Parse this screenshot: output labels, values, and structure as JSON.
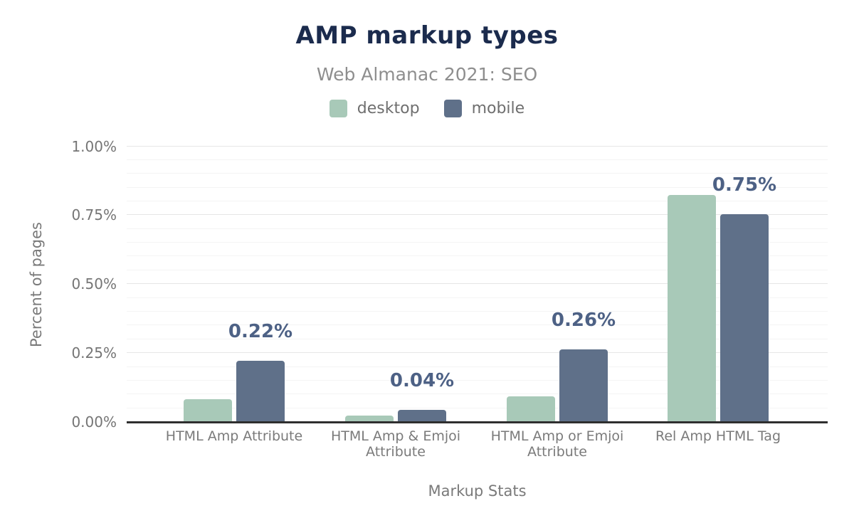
{
  "chart_data": {
    "type": "bar",
    "title": "AMP markup types",
    "subtitle": "Web Almanac 2021: SEO",
    "xlabel": "Markup Stats",
    "ylabel": "Percent of pages",
    "categories": [
      "HTML Amp Attribute",
      "HTML Amp & Emjoi Attribute",
      "HTML Amp or Emjoi Attribute",
      "Rel Amp HTML Tag"
    ],
    "series": [
      {
        "name": "desktop",
        "color": "#a8c9b8",
        "values": [
          0.08,
          0.02,
          0.09,
          0.82
        ]
      },
      {
        "name": "mobile",
        "color": "#5f7089",
        "values": [
          0.22,
          0.04,
          0.26,
          0.75
        ],
        "data_labels": [
          "0.22%",
          "0.04%",
          "0.26%",
          "0.75%"
        ]
      }
    ],
    "ylim": [
      0,
      1.0
    ],
    "y_ticks": [
      {
        "value": 0.0,
        "label": "0.00%"
      },
      {
        "value": 0.25,
        "label": "0.25%"
      },
      {
        "value": 0.5,
        "label": "0.50%"
      },
      {
        "value": 0.75,
        "label": "0.75%"
      },
      {
        "value": 1.0,
        "label": "1.00%"
      }
    ],
    "grid": {
      "major_step": 0.25,
      "minor_step": 0.05,
      "visible": true
    },
    "legend_position": "top",
    "value_format": "percent"
  },
  "colors": {
    "title": "#1b2b4d",
    "subtitle": "#8e8e8e",
    "desktop_series": "#a8c9b8",
    "mobile_series": "#5f7089",
    "data_label": "#4d6185",
    "axis_text": "#757575",
    "axis_line": "#2f2f2f",
    "grid_major": "#e6e6e6",
    "grid_minor": "#f4f4f4"
  }
}
